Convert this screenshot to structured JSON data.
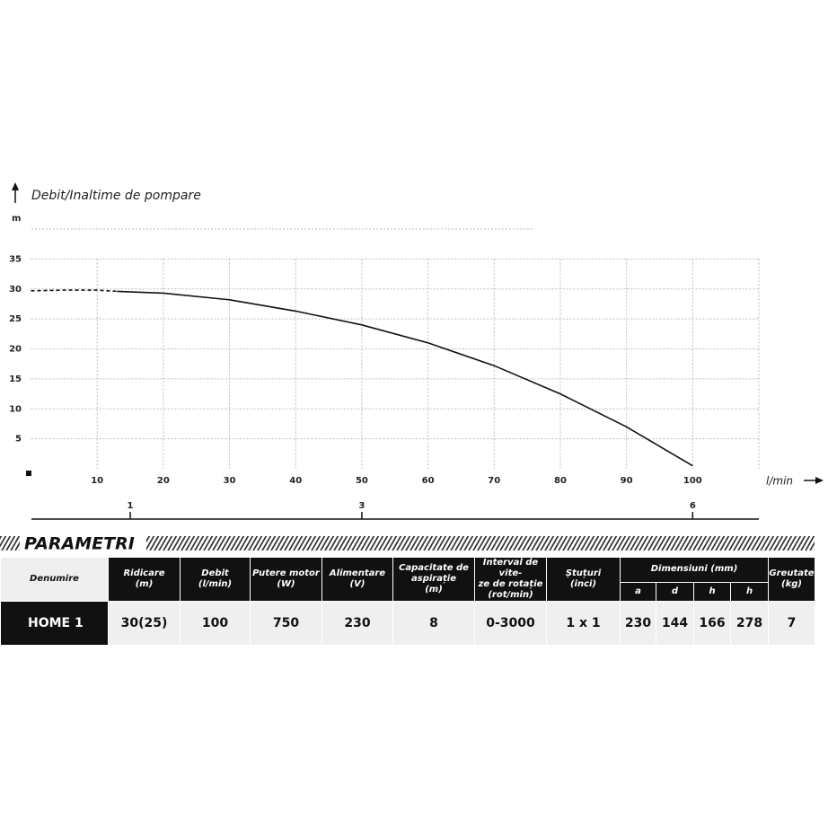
{
  "chart_data": {
    "type": "line",
    "title": "Debit/Inaltime de pompare",
    "y_label": "m",
    "x_label": "l/min",
    "xlim": [
      0,
      110
    ],
    "ylim": [
      0,
      40
    ],
    "xticks": [
      10,
      20,
      30,
      40,
      50,
      60,
      70,
      80,
      90,
      100
    ],
    "yticks": [
      5,
      10,
      15,
      20,
      25,
      30,
      35
    ],
    "x2ticks": [
      {
        "value": 15,
        "label": "1"
      },
      {
        "value": 50,
        "label": "3"
      },
      {
        "value": 100,
        "label": "6"
      }
    ],
    "grid": true,
    "series": [
      {
        "color": "#111111",
        "dashed": true,
        "x": [
          0,
          5,
          10,
          13
        ],
        "values": [
          29.7,
          29.8,
          29.8,
          29.6
        ]
      },
      {
        "color": "#111111",
        "dashed": false,
        "x": [
          13,
          20,
          30,
          40,
          50,
          60,
          70,
          80,
          90,
          100
        ],
        "values": [
          29.6,
          29.3,
          28.2,
          26.3,
          24,
          21,
          17.2,
          12.5,
          7,
          0.5
        ]
      }
    ]
  },
  "section_title": "PARAMETRI",
  "table": {
    "headers": [
      "Denumire",
      "Ridicare\n(m)",
      "Debit\n(l/min)",
      "Putere motor\n(W)",
      "Alimentare\n(V)",
      "Capacitate de\naspirație\n(m)",
      "Interval de vite-\nze de rotație\n(rot/min)",
      "Ștuțuri\n(inci)"
    ],
    "group_header": "Dimensiuni (mm)",
    "subheaders": [
      "a",
      "d",
      "h",
      "h"
    ],
    "last_header": "Greutate\n(kg)",
    "rows": [
      [
        "HOME 1",
        "30(25)",
        "100",
        "750",
        "230",
        "8",
        "0-3000",
        "1 x 1",
        "230",
        "144",
        "166",
        "278",
        "7"
      ]
    ]
  }
}
